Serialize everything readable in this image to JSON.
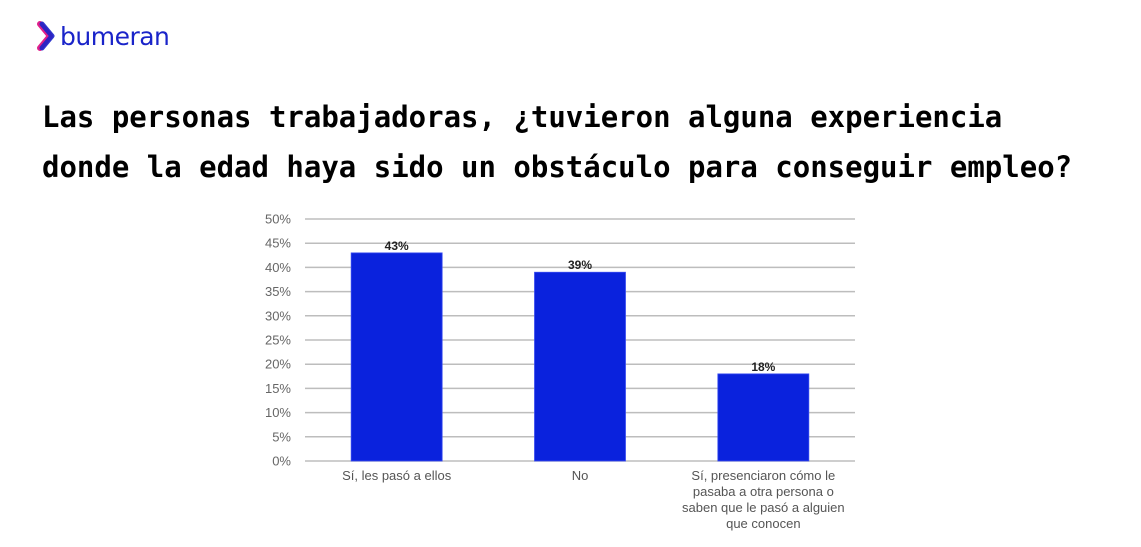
{
  "brand": {
    "name": "bumeran",
    "color": "#1a24c9"
  },
  "title_lines": [
    "Las personas trabajadoras, ¿tuvieron alguna experiencia",
    "donde la edad haya sido un obstáculo para conseguir empleo?"
  ],
  "chart_data": {
    "type": "bar",
    "categories": [
      [
        "Sí, les pasó a ellos"
      ],
      [
        "No"
      ],
      [
        "Sí, presenciaron cómo le",
        "pasaba a otra persona o",
        "saben que le pasó a alguien",
        "que conocen"
      ]
    ],
    "values": [
      43,
      39,
      18
    ],
    "data_labels": [
      "43%",
      "39%",
      "18%"
    ],
    "ylim": [
      0,
      50
    ],
    "yticks": [
      0,
      5,
      10,
      15,
      20,
      25,
      30,
      35,
      40,
      45,
      50
    ],
    "ytick_labels": [
      "0%",
      "5%",
      "10%",
      "15%",
      "20%",
      "25%",
      "30%",
      "35%",
      "40%",
      "45%",
      "50%"
    ],
    "grid": true,
    "bar_color": "#0a22dd",
    "grid_color": "#bdbdbd"
  }
}
